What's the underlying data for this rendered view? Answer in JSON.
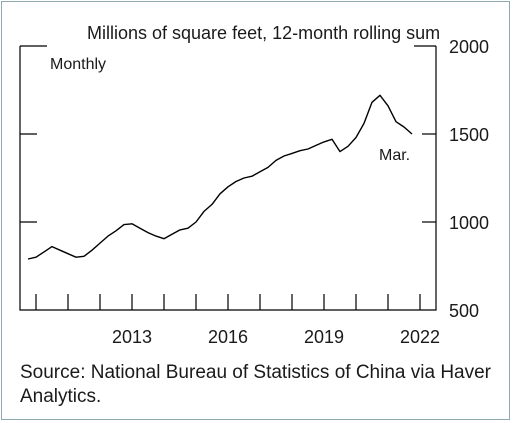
{
  "chart_data": {
    "type": "line",
    "title": "Millions of square feet, 12-month rolling sum",
    "frequency_label": "Monthly",
    "end_label": "Mar.",
    "source": "Source: National Bureau of Statistics of China via Haver Analytics.",
    "y_axis": {
      "ylim": [
        500,
        2000
      ],
      "ticks": [
        500,
        1000,
        1500,
        2000
      ],
      "tick_labels": [
        "500",
        "1000",
        "1500",
        "2000"
      ],
      "side": "right"
    },
    "x_axis": {
      "xlim": [
        2010.0,
        2023.0
      ],
      "year_ticks": [
        2010,
        2011,
        2012,
        2013,
        2014,
        2015,
        2016,
        2017,
        2018,
        2019,
        2020,
        2021,
        2022
      ],
      "labels": [
        "2013",
        "2016",
        "2019",
        "2022"
      ]
    },
    "grid": false,
    "series": [
      {
        "line_color": "#000000",
        "x": [
          2010.25,
          2010.5,
          2010.75,
          2011.0,
          2011.25,
          2011.5,
          2011.75,
          2012.0,
          2012.25,
          2012.5,
          2012.75,
          2013.0,
          2013.25,
          2013.5,
          2013.75,
          2014.0,
          2014.25,
          2014.5,
          2014.75,
          2015.0,
          2015.25,
          2015.5,
          2015.75,
          2016.0,
          2016.25,
          2016.5,
          2016.75,
          2017.0,
          2017.25,
          2017.5,
          2017.75,
          2018.0,
          2018.25,
          2018.5,
          2018.75,
          2019.0,
          2019.25,
          2019.5,
          2019.75,
          2020.0,
          2020.25,
          2020.5,
          2020.75,
          2021.0,
          2021.25,
          2021.5,
          2021.75,
          2022.0,
          2022.25
        ],
        "values": [
          790,
          800,
          830,
          860,
          840,
          820,
          800,
          805,
          840,
          880,
          920,
          950,
          985,
          990,
          965,
          940,
          920,
          905,
          930,
          955,
          965,
          1000,
          1060,
          1100,
          1160,
          1200,
          1230,
          1250,
          1260,
          1285,
          1310,
          1350,
          1375,
          1390,
          1405,
          1415,
          1435,
          1455,
          1470,
          1400,
          1430,
          1480,
          1560,
          1680,
          1720,
          1660,
          1570,
          1540,
          1500
        ]
      }
    ]
  }
}
